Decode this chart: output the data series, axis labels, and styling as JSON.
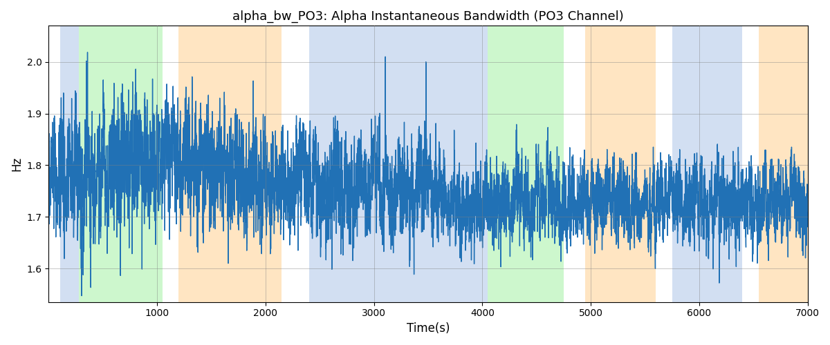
{
  "title": "alpha_bw_PO3: Alpha Instantaneous Bandwidth (PO3 Channel)",
  "xlabel": "Time(s)",
  "ylabel": "Hz",
  "xlim": [
    0,
    7000
  ],
  "ylim": [
    1.535,
    2.07
  ],
  "yticks": [
    1.6,
    1.7,
    1.8,
    1.9,
    2.0
  ],
  "xticks": [
    1000,
    2000,
    3000,
    4000,
    5000,
    6000,
    7000
  ],
  "line_color": "#2171b5",
  "line_width": 1.0,
  "bg_regions": [
    {
      "xmin": 105,
      "xmax": 280,
      "color": "#aec6e8",
      "alpha": 0.55
    },
    {
      "xmin": 280,
      "xmax": 1050,
      "color": "#90ee90",
      "alpha": 0.45
    },
    {
      "xmin": 1200,
      "xmax": 2150,
      "color": "#ffd59a",
      "alpha": 0.6
    },
    {
      "xmin": 2400,
      "xmax": 4050,
      "color": "#aec6e8",
      "alpha": 0.55
    },
    {
      "xmin": 4050,
      "xmax": 4750,
      "color": "#90ee90",
      "alpha": 0.45
    },
    {
      "xmin": 4950,
      "xmax": 5600,
      "color": "#ffd59a",
      "alpha": 0.6
    },
    {
      "xmin": 5750,
      "xmax": 6400,
      "color": "#aec6e8",
      "alpha": 0.55
    },
    {
      "xmin": 6550,
      "xmax": 7000,
      "color": "#ffd59a",
      "alpha": 0.6
    }
  ],
  "seed": 12345,
  "n_points": 7000
}
